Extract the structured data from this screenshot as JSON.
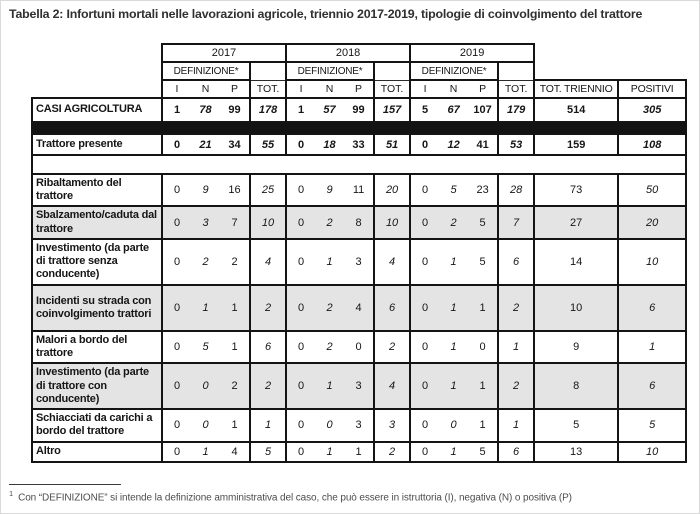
{
  "title": "Tabella 2: Infortuni mortali nelle lavorazioni agricole, triennio 2017-2019, tipologie di coinvolgimento del trattore",
  "table": {
    "years": [
      "2017",
      "2018",
      "2019"
    ],
    "definizione_label": "DEFINIZIONE*",
    "def_cols": [
      "I",
      "N",
      "P"
    ],
    "tot_label": "TOT.",
    "tot_triennio_label": "TOT. TRIENNIO",
    "positivi_label": "POSITIVI",
    "rows": [
      {
        "label": "CASI AGRICOLTURA",
        "values": [
          "1",
          "78",
          "99",
          "178",
          "1",
          "57",
          "99",
          "157",
          "5",
          "67",
          "107",
          "179",
          "514",
          "305"
        ]
      },
      {
        "label": "Trattore presente",
        "values": [
          "0",
          "21",
          "34",
          "55",
          "0",
          "18",
          "33",
          "51",
          "0",
          "12",
          "41",
          "53",
          "159",
          "108"
        ]
      },
      {
        "label": "Ribaltamento del trattore",
        "values": [
          "0",
          "9",
          "16",
          "25",
          "0",
          "9",
          "11",
          "20",
          "0",
          "5",
          "23",
          "28",
          "73",
          "50"
        ]
      },
      {
        "label": "Sbalzamento/caduta dal trattore",
        "values": [
          "0",
          "3",
          "7",
          "10",
          "0",
          "2",
          "8",
          "10",
          "0",
          "2",
          "5",
          "7",
          "27",
          "20"
        ]
      },
      {
        "label": "Investimento (da parte di trattore senza conducente)",
        "values": [
          "0",
          "2",
          "2",
          "4",
          "0",
          "1",
          "3",
          "4",
          "0",
          "1",
          "5",
          "6",
          "14",
          "10"
        ]
      },
      {
        "label": "Incidenti su strada con coinvolgimento trattori",
        "values": [
          "0",
          "1",
          "1",
          "2",
          "0",
          "2",
          "4",
          "6",
          "0",
          "1",
          "1",
          "2",
          "10",
          "6"
        ]
      },
      {
        "label": "Malori a bordo del trattore",
        "values": [
          "0",
          "5",
          "1",
          "6",
          "0",
          "2",
          "0",
          "2",
          "0",
          "1",
          "0",
          "1",
          "9",
          "1"
        ]
      },
      {
        "label": "Investimento (da parte di trattore con conducente)",
        "values": [
          "0",
          "0",
          "2",
          "2",
          "0",
          "1",
          "3",
          "4",
          "0",
          "1",
          "1",
          "2",
          "8",
          "6"
        ]
      },
      {
        "label": "Schiacciati da carichi a bordo del trattore",
        "values": [
          "0",
          "0",
          "1",
          "1",
          "0",
          "0",
          "3",
          "3",
          "0",
          "0",
          "1",
          "1",
          "5",
          "5"
        ]
      },
      {
        "label": "Altro",
        "values": [
          "0",
          "1",
          "4",
          "5",
          "0",
          "1",
          "1",
          "2",
          "0",
          "1",
          "5",
          "6",
          "13",
          "10"
        ]
      }
    ]
  },
  "footnote": {
    "marker": "1",
    "text": "Con “DEFINIZIONE” si intende la definizione amministrativa del caso, che può essere in istruttoria (I), negativa (N) o positiva (P)"
  }
}
